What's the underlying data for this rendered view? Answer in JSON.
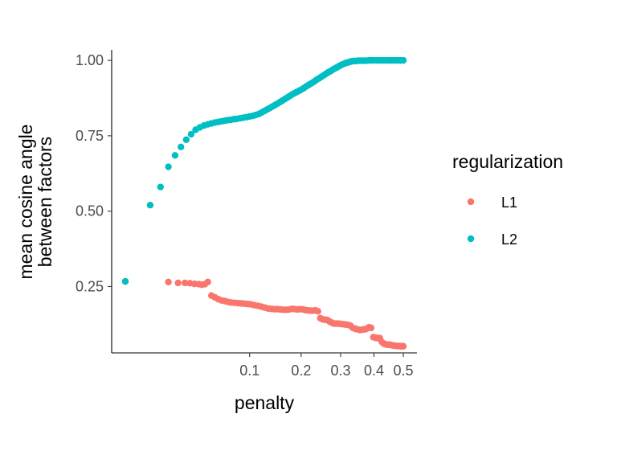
{
  "chart_data": {
    "type": "scatter",
    "xlabel": "penalty",
    "ylabel_lines": [
      "mean cosine angle",
      "between factors"
    ],
    "x_scale": "sqrt",
    "xlim": [
      0.0,
      0.5
    ],
    "ylim": [
      0.03,
      1.035
    ],
    "x_ticks": [
      {
        "value": 0.1,
        "label": "0.1"
      },
      {
        "value": 0.2,
        "label": "0.2"
      },
      {
        "value": 0.3,
        "label": "0.3"
      },
      {
        "value": 0.4,
        "label": "0.4"
      },
      {
        "value": 0.5,
        "label": "0.5"
      }
    ],
    "y_ticks": [
      {
        "value": 0.25,
        "label": "0.25"
      },
      {
        "value": 0.5,
        "label": "0.50"
      },
      {
        "value": 0.75,
        "label": "0.75"
      },
      {
        "value": 1.0,
        "label": "1.00"
      }
    ],
    "grid": false,
    "legend": {
      "title": "regularization",
      "position": "right"
    },
    "series": [
      {
        "name": "L1",
        "color": "#F8766D",
        "points": [
          [
            0.0,
            0.267
          ],
          [
            0.012,
            0.265
          ],
          [
            0.018,
            0.262
          ],
          [
            0.023,
            0.262
          ],
          [
            0.027,
            0.261
          ],
          [
            0.031,
            0.259
          ],
          [
            0.035,
            0.258
          ],
          [
            0.038,
            0.256
          ],
          [
            0.041,
            0.258
          ],
          [
            0.044,
            0.265
          ],
          [
            0.048,
            0.22
          ],
          [
            0.052,
            0.214
          ],
          [
            0.056,
            0.208
          ],
          [
            0.06,
            0.204
          ],
          [
            0.064,
            0.202
          ],
          [
            0.068,
            0.199
          ],
          [
            0.072,
            0.197
          ],
          [
            0.077,
            0.196
          ],
          [
            0.082,
            0.195
          ],
          [
            0.087,
            0.194
          ],
          [
            0.092,
            0.193
          ],
          [
            0.097,
            0.192
          ],
          [
            0.102,
            0.191
          ],
          [
            0.108,
            0.188
          ],
          [
            0.114,
            0.186
          ],
          [
            0.12,
            0.183
          ],
          [
            0.126,
            0.18
          ],
          [
            0.132,
            0.177
          ],
          [
            0.138,
            0.176
          ],
          [
            0.144,
            0.175
          ],
          [
            0.15,
            0.175
          ],
          [
            0.156,
            0.174
          ],
          [
            0.162,
            0.173
          ],
          [
            0.168,
            0.173
          ],
          [
            0.174,
            0.174
          ],
          [
            0.18,
            0.176
          ],
          [
            0.186,
            0.175
          ],
          [
            0.192,
            0.174
          ],
          [
            0.198,
            0.175
          ],
          [
            0.204,
            0.174
          ],
          [
            0.21,
            0.172
          ],
          [
            0.216,
            0.171
          ],
          [
            0.222,
            0.17
          ],
          [
            0.228,
            0.17
          ],
          [
            0.234,
            0.171
          ],
          [
            0.24,
            0.168
          ],
          [
            0.246,
            0.145
          ],
          [
            0.252,
            0.141
          ],
          [
            0.258,
            0.14
          ],
          [
            0.264,
            0.139
          ],
          [
            0.27,
            0.134
          ],
          [
            0.276,
            0.13
          ],
          [
            0.282,
            0.127
          ],
          [
            0.288,
            0.127
          ],
          [
            0.294,
            0.127
          ],
          [
            0.3,
            0.126
          ],
          [
            0.307,
            0.125
          ],
          [
            0.314,
            0.124
          ],
          [
            0.321,
            0.123
          ],
          [
            0.328,
            0.12
          ],
          [
            0.335,
            0.113
          ],
          [
            0.342,
            0.11
          ],
          [
            0.349,
            0.108
          ],
          [
            0.356,
            0.106
          ],
          [
            0.363,
            0.107
          ],
          [
            0.37,
            0.108
          ],
          [
            0.377,
            0.11
          ],
          [
            0.384,
            0.115
          ],
          [
            0.391,
            0.113
          ],
          [
            0.398,
            0.082
          ],
          [
            0.405,
            0.08
          ],
          [
            0.412,
            0.079
          ],
          [
            0.419,
            0.079
          ],
          [
            0.426,
            0.066
          ],
          [
            0.433,
            0.06
          ],
          [
            0.44,
            0.058
          ],
          [
            0.447,
            0.057
          ],
          [
            0.454,
            0.057
          ],
          [
            0.461,
            0.055
          ],
          [
            0.468,
            0.054
          ],
          [
            0.475,
            0.053
          ],
          [
            0.482,
            0.053
          ],
          [
            0.489,
            0.052
          ],
          [
            0.496,
            0.052
          ],
          [
            0.5,
            0.052
          ]
        ]
      },
      {
        "name": "L2",
        "color": "#00BFC4",
        "points": [
          [
            0.0,
            0.267
          ],
          [
            0.004,
            0.52
          ],
          [
            0.008,
            0.58
          ],
          [
            0.012,
            0.647
          ],
          [
            0.016,
            0.685
          ],
          [
            0.02,
            0.713
          ],
          [
            0.024,
            0.737
          ],
          [
            0.028,
            0.755
          ],
          [
            0.032,
            0.77
          ],
          [
            0.036,
            0.778
          ],
          [
            0.04,
            0.784
          ],
          [
            0.044,
            0.788
          ],
          [
            0.048,
            0.791
          ],
          [
            0.052,
            0.794
          ],
          [
            0.056,
            0.796
          ],
          [
            0.06,
            0.798
          ],
          [
            0.064,
            0.8
          ],
          [
            0.068,
            0.802
          ],
          [
            0.072,
            0.803
          ],
          [
            0.076,
            0.805
          ],
          [
            0.08,
            0.806
          ],
          [
            0.085,
            0.808
          ],
          [
            0.09,
            0.81
          ],
          [
            0.095,
            0.812
          ],
          [
            0.1,
            0.814
          ],
          [
            0.105,
            0.816
          ],
          [
            0.11,
            0.819
          ],
          [
            0.115,
            0.822
          ],
          [
            0.12,
            0.827
          ],
          [
            0.125,
            0.832
          ],
          [
            0.13,
            0.837
          ],
          [
            0.135,
            0.842
          ],
          [
            0.14,
            0.847
          ],
          [
            0.145,
            0.852
          ],
          [
            0.15,
            0.857
          ],
          [
            0.155,
            0.862
          ],
          [
            0.16,
            0.867
          ],
          [
            0.165,
            0.872
          ],
          [
            0.17,
            0.877
          ],
          [
            0.175,
            0.882
          ],
          [
            0.18,
            0.887
          ],
          [
            0.185,
            0.891
          ],
          [
            0.19,
            0.895
          ],
          [
            0.195,
            0.899
          ],
          [
            0.2,
            0.903
          ],
          [
            0.206,
            0.908
          ],
          [
            0.212,
            0.914
          ],
          [
            0.218,
            0.919
          ],
          [
            0.224,
            0.924
          ],
          [
            0.23,
            0.929
          ],
          [
            0.236,
            0.935
          ],
          [
            0.242,
            0.94
          ],
          [
            0.248,
            0.945
          ],
          [
            0.254,
            0.95
          ],
          [
            0.26,
            0.955
          ],
          [
            0.266,
            0.96
          ],
          [
            0.272,
            0.964
          ],
          [
            0.278,
            0.969
          ],
          [
            0.284,
            0.973
          ],
          [
            0.29,
            0.977
          ],
          [
            0.296,
            0.981
          ],
          [
            0.302,
            0.985
          ],
          [
            0.308,
            0.988
          ],
          [
            0.314,
            0.991
          ],
          [
            0.32,
            0.993
          ],
          [
            0.326,
            0.995
          ],
          [
            0.332,
            0.997
          ],
          [
            0.338,
            0.998
          ],
          [
            0.345,
            0.998
          ],
          [
            0.352,
            0.999
          ],
          [
            0.36,
            0.999
          ],
          [
            0.368,
            0.999
          ],
          [
            0.376,
            0.999
          ],
          [
            0.384,
            1.0
          ],
          [
            0.392,
            1.0
          ],
          [
            0.4,
            1.0
          ],
          [
            0.41,
            1.0
          ],
          [
            0.42,
            1.0
          ],
          [
            0.43,
            1.0
          ],
          [
            0.44,
            1.0
          ],
          [
            0.45,
            1.0
          ],
          [
            0.46,
            1.0
          ],
          [
            0.47,
            1.0
          ],
          [
            0.48,
            1.0
          ],
          [
            0.49,
            1.0
          ],
          [
            0.5,
            1.0
          ]
        ]
      }
    ]
  }
}
